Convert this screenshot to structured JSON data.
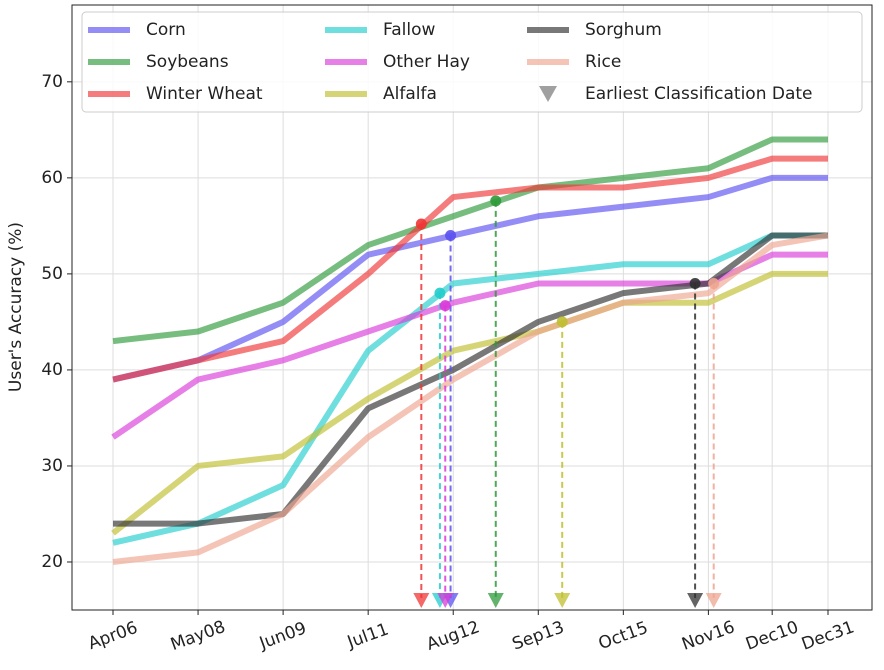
{
  "chart_data": {
    "type": "line",
    "ylabel": "User's Accuracy (%)",
    "categories": [
      "Apr06",
      "May08",
      "Jun09",
      "Jul11",
      "Aug12",
      "Sep13",
      "Oct15",
      "Nov16",
      "Dec10",
      "Dec31"
    ],
    "series": [
      {
        "name": "Corn",
        "color": "#5a50f0",
        "values": [
          39,
          41,
          45,
          52,
          54,
          56,
          57,
          58,
          60,
          60
        ],
        "earliest": {
          "x": "Aug11",
          "y": 54
        }
      },
      {
        "name": "Soybeans",
        "color": "#2e9a3a",
        "values": [
          43,
          44,
          47,
          53,
          56,
          59,
          60,
          61,
          64,
          64
        ],
        "earliest": {
          "x": "Aug28",
          "y": 57.6
        }
      },
      {
        "name": "Winter Wheat",
        "color": "#f03535",
        "values": [
          39,
          41,
          43,
          50,
          58,
          59,
          59,
          60,
          62,
          62
        ],
        "earliest": {
          "x": "Jul31",
          "y": 55.2
        }
      },
      {
        "name": "Fallow",
        "color": "#22cccc",
        "values": [
          22,
          24,
          28,
          42,
          49,
          50,
          51,
          51,
          54,
          54
        ],
        "earliest": {
          "x": "Aug07",
          "y": 48
        }
      },
      {
        "name": "Other Hay",
        "color": "#d83ad8",
        "values": [
          33,
          39,
          41,
          44,
          47,
          49,
          49,
          49,
          52,
          52
        ],
        "earliest": {
          "x": "Aug09",
          "y": 46.7
        }
      },
      {
        "name": "Alfalfa",
        "color": "#bfbf30",
        "values": [
          23,
          30,
          31,
          37,
          42,
          44,
          47,
          47,
          50,
          50
        ],
        "earliest": {
          "x": "Sep22",
          "y": 45
        }
      },
      {
        "name": "Sorghum",
        "color": "#303030",
        "values": [
          24,
          24,
          25,
          36,
          40,
          45,
          48,
          49,
          54,
          54
        ],
        "earliest": {
          "x": "Nov11",
          "y": 49
        }
      },
      {
        "name": "Rice",
        "color": "#eea590",
        "values": [
          20,
          21,
          25,
          33,
          39,
          44,
          47,
          48,
          53,
          54
        ],
        "earliest": {
          "x": "Nov18",
          "y": 49
        }
      }
    ],
    "earliest_label": "Earliest Classification Date",
    "earliest_color": "#888888",
    "ylim": [
      15,
      78
    ],
    "yticks": [
      20,
      30,
      40,
      50,
      60,
      70
    ],
    "grid": true,
    "legend": "upper left"
  }
}
